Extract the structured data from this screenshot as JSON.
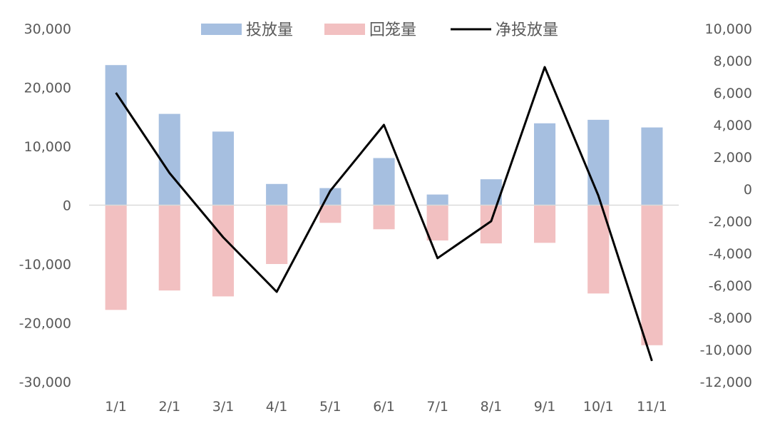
{
  "chart_data": {
    "type": "bar",
    "categories": [
      "1/1",
      "2/1",
      "3/1",
      "4/1",
      "5/1",
      "6/1",
      "7/1",
      "8/1",
      "9/1",
      "10/1",
      "11/1"
    ],
    "series": [
      {
        "name": "投放量",
        "type": "bar",
        "axis": "left",
        "color": "#a6bfe0",
        "values": [
          23800,
          15500,
          12500,
          3600,
          2900,
          8000,
          1800,
          4400,
          13900,
          14500,
          13200
        ]
      },
      {
        "name": "回笼量",
        "type": "bar",
        "axis": "left",
        "color": "#f2c0c1",
        "values": [
          -17800,
          -14500,
          -15500,
          -10000,
          -3000,
          -4100,
          -6000,
          -6500,
          -6400,
          -15000,
          -23800
        ]
      },
      {
        "name": "净投放量",
        "type": "line",
        "axis": "right",
        "color": "#000000",
        "values": [
          6000,
          1000,
          -3000,
          -6400,
          -100,
          4000,
          -4300,
          -2000,
          7600,
          -400,
          -10700
        ]
      }
    ],
    "y_left": {
      "min": -30000,
      "max": 30000,
      "step": 10000,
      "tick_labels": [
        "30,000",
        "20,000",
        "10,000",
        "0",
        "-10,000",
        "-20,000",
        "-30,000"
      ]
    },
    "y_right": {
      "min": -12000,
      "max": 10000,
      "step": 2000,
      "tick_labels": [
        "10,000",
        "8,000",
        "6,000",
        "4,000",
        "2,000",
        "0",
        "-2,000",
        "-4,000",
        "-6,000",
        "-8,000",
        "-10,000",
        "-12,000"
      ]
    },
    "legend_position": "top",
    "grid": false
  }
}
